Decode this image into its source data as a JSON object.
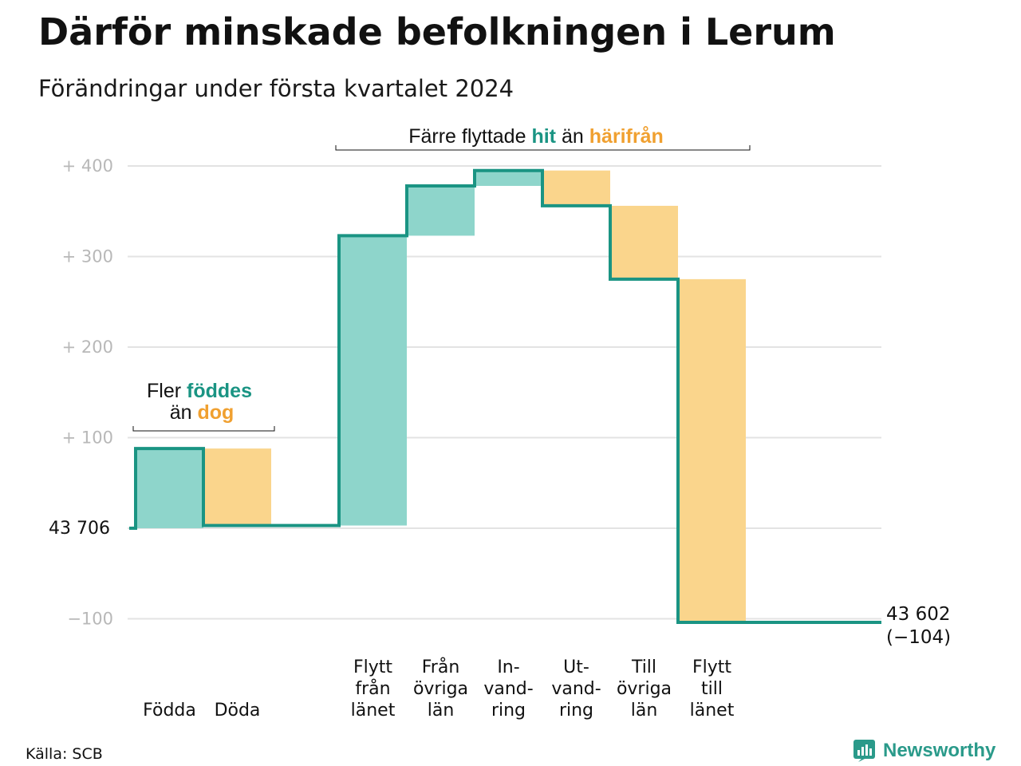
{
  "title": "Därför minskade befolkningen i Lerum",
  "subtitle": "Förändringar under första kvartalet 2024",
  "source": "Källa: SCB",
  "brand": "Newsworthy",
  "colors": {
    "increase_fill": "#8ed5cb",
    "decrease_fill": "#fad58c",
    "line": "#1a9483",
    "teal_text": "#1a9483",
    "orange_text": "#f0a030",
    "grid": "#e3e3e3",
    "tick": "#b8b8b8"
  },
  "annotations": {
    "births": {
      "line1_prefix": "Fler",
      "line1_bold": "föddes",
      "line2_prefix": "än",
      "line2_bold": "dog"
    },
    "moves": {
      "prefix": "Färre flyttade",
      "bold1": "hit",
      "middle": "än",
      "bold2": "härifrån"
    }
  },
  "end_label": {
    "value": "43 602",
    "change": "(−104)"
  },
  "chart_data": {
    "type": "waterfall",
    "baseline": 43706,
    "baseline_label": "43  706",
    "y_ticks": [
      {
        "value": -100,
        "label": "−100"
      },
      {
        "value": 100,
        "label": "+  100"
      },
      {
        "value": 200,
        "label": "+  200"
      },
      {
        "value": 300,
        "label": "+  300"
      },
      {
        "value": 400,
        "label": "+  400"
      }
    ],
    "ylim": [
      -120,
      420
    ],
    "grid": true,
    "steps": [
      {
        "label": [
          "Födda"
        ],
        "change": 88
      },
      {
        "label": [
          "Döda"
        ],
        "change": -85
      },
      {
        "label": [],
        "change": 0
      },
      {
        "label": [
          "Flytt",
          "från",
          "länet"
        ],
        "change": 320
      },
      {
        "label": [
          "Från",
          "övriga",
          "län"
        ],
        "change": 55
      },
      {
        "label": [
          "In-",
          "vand-",
          "ring"
        ],
        "change": 17
      },
      {
        "label": [
          "Ut-",
          "vand-",
          "ring"
        ],
        "change": -39
      },
      {
        "label": [
          "Till",
          "övriga",
          "län"
        ],
        "change": -81
      },
      {
        "label": [
          "Flytt",
          "till",
          "länet"
        ],
        "change": -379
      }
    ],
    "end_value": 43602,
    "end_change": -104
  }
}
